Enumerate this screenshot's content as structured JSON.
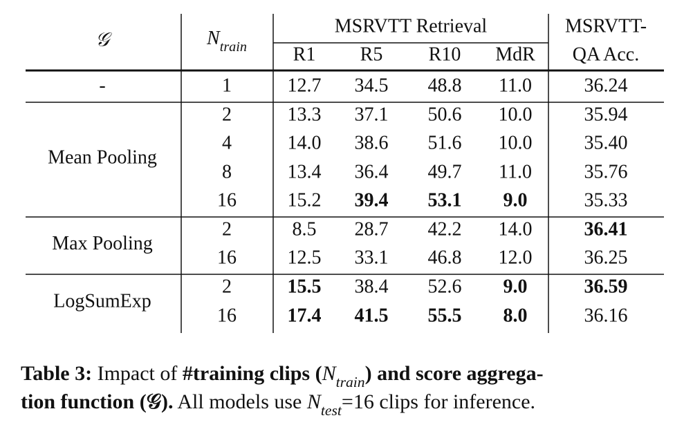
{
  "header": {
    "aggregation": "𝒢",
    "n_train": {
      "base": "N",
      "sub": "train"
    },
    "group": "MSRVTT Retrieval",
    "metrics": [
      "R1",
      "R5",
      "R10",
      "MdR"
    ],
    "qa": [
      "MSRVTT-",
      "QA Acc."
    ]
  },
  "table": {
    "groups": [
      {
        "name": "-",
        "rows": [
          {
            "n": "1",
            "values": [
              "12.7",
              "34.5",
              "48.8",
              "11.0",
              "36.24"
            ],
            "bold": [
              false,
              false,
              false,
              false,
              false
            ]
          }
        ]
      },
      {
        "name": "Mean Pooling",
        "rows": [
          {
            "n": "2",
            "values": [
              "13.3",
              "37.1",
              "50.6",
              "10.0",
              "35.94"
            ],
            "bold": [
              false,
              false,
              false,
              false,
              false
            ]
          },
          {
            "n": "4",
            "values": [
              "14.0",
              "38.6",
              "51.6",
              "10.0",
              "35.40"
            ],
            "bold": [
              false,
              false,
              false,
              false,
              false
            ]
          },
          {
            "n": "8",
            "values": [
              "13.4",
              "36.4",
              "49.7",
              "11.0",
              "35.76"
            ],
            "bold": [
              false,
              false,
              false,
              false,
              false
            ]
          },
          {
            "n": "16",
            "values": [
              "15.2",
              "39.4",
              "53.1",
              "9.0",
              "35.33"
            ],
            "bold": [
              false,
              true,
              true,
              true,
              false
            ]
          }
        ]
      },
      {
        "name": "Max Pooling",
        "rows": [
          {
            "n": "2",
            "values": [
              "8.5",
              "28.7",
              "42.2",
              "14.0",
              "36.41"
            ],
            "bold": [
              false,
              false,
              false,
              false,
              true
            ]
          },
          {
            "n": "16",
            "values": [
              "12.5",
              "33.1",
              "46.8",
              "12.0",
              "36.25"
            ],
            "bold": [
              false,
              false,
              false,
              false,
              false
            ]
          }
        ]
      },
      {
        "name": "LogSumExp",
        "rows": [
          {
            "n": "2",
            "values": [
              "15.5",
              "38.4",
              "52.6",
              "9.0",
              "36.59"
            ],
            "bold": [
              true,
              false,
              false,
              true,
              true
            ]
          },
          {
            "n": "16",
            "values": [
              "17.4",
              "41.5",
              "55.5",
              "8.0",
              "36.16"
            ],
            "bold": [
              true,
              true,
              true,
              true,
              false
            ]
          }
        ]
      }
    ]
  },
  "caption": [
    [
      {
        "text": "Table 3:",
        "bold": true
      },
      {
        "text": " Impact of ",
        "bold": false
      },
      {
        "text": "#training clips (",
        "bold": true
      },
      {
        "base": "N",
        "sub": "train"
      },
      {
        "text": ") and score aggrega-",
        "bold": true
      }
    ],
    [
      {
        "text": "tion function (𝒢).",
        "bold": true
      },
      {
        "text": " All models use ",
        "bold": false
      },
      {
        "base": "N",
        "sub": "test"
      },
      {
        "text": "=16 clips for inference.",
        "bold": false
      }
    ]
  ]
}
